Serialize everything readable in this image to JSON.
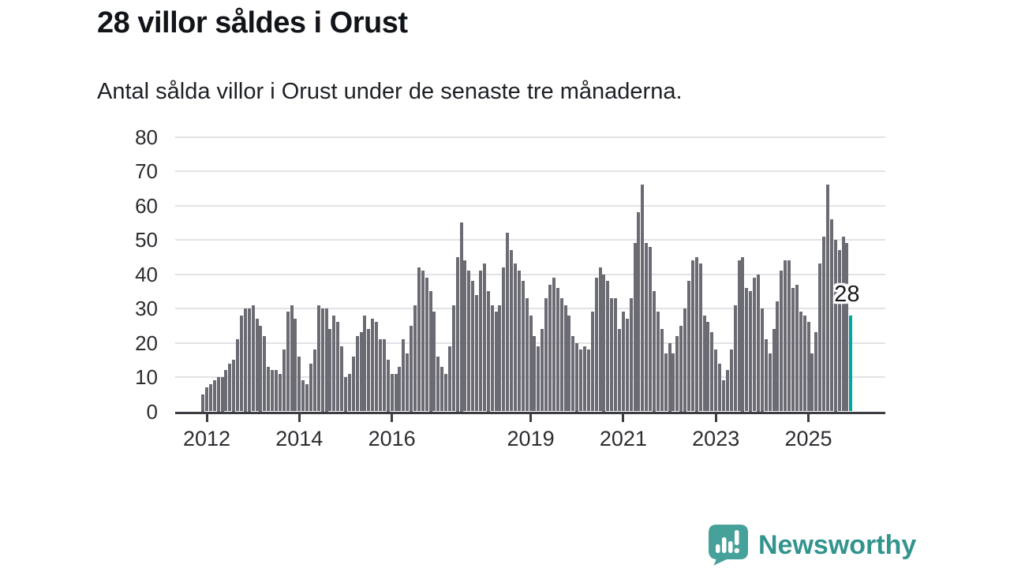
{
  "header": {
    "title": "28 villor såldes i Orust",
    "subtitle": "Antal sålda villor i Orust under de senaste tre månaderna."
  },
  "chart_data": {
    "type": "bar",
    "title": "28 villor såldes i Orust",
    "xlabel": "",
    "ylabel": "",
    "start_month": "2011-12",
    "frequency": "monthly",
    "values": [
      5,
      7,
      8,
      9,
      10,
      10,
      12,
      14,
      15,
      21,
      28,
      30,
      30,
      31,
      27,
      25,
      22,
      13,
      12,
      12,
      11,
      18,
      29,
      31,
      27,
      16,
      9,
      8,
      14,
      18,
      31,
      30,
      30,
      24,
      28,
      26,
      19,
      10,
      11,
      16,
      22,
      23,
      28,
      24,
      27,
      26,
      21,
      21,
      15,
      11,
      11,
      13,
      21,
      17,
      25,
      31,
      42,
      41,
      39,
      35,
      29,
      16,
      13,
      11,
      19,
      31,
      45,
      55,
      44,
      41,
      38,
      34,
      41,
      43,
      35,
      31,
      29,
      31,
      42,
      52,
      47,
      43,
      41,
      38,
      33,
      28,
      22,
      19,
      24,
      33,
      37,
      39,
      36,
      33,
      31,
      28,
      22,
      20,
      18,
      19,
      18,
      29,
      39,
      42,
      40,
      38,
      33,
      33,
      24,
      29,
      27,
      33,
      49,
      58,
      66,
      49,
      48,
      35,
      29,
      24,
      17,
      20,
      17,
      22,
      25,
      30,
      38,
      44,
      45,
      43,
      28,
      26,
      23,
      18,
      14,
      9,
      12,
      18,
      31,
      44,
      45,
      36,
      35,
      39,
      40,
      30,
      21,
      17,
      24,
      32,
      41,
      44,
      44,
      36,
      37,
      29,
      28,
      26,
      17,
      23,
      43,
      51,
      66,
      56,
      50,
      47,
      51,
      49,
      28
    ],
    "highlight_last": true,
    "highlight_value": 28,
    "highlight_label": "28",
    "yticks": [
      0,
      10,
      20,
      30,
      40,
      50,
      60,
      70,
      80
    ],
    "ylim": [
      0,
      80
    ],
    "xticks": [
      {
        "label": "2012",
        "index": 1
      },
      {
        "label": "2014",
        "index": 25
      },
      {
        "label": "2016",
        "index": 49
      },
      {
        "label": "2019",
        "index": 85
      },
      {
        "label": "2021",
        "index": 109
      },
      {
        "label": "2023",
        "index": 133
      },
      {
        "label": "2025",
        "index": 157
      }
    ],
    "grid": true,
    "legend": "none",
    "colors": {
      "bar": "#6b6b73",
      "highlight": "#00a5a0",
      "gridline": "#e3e3e7",
      "axis": "#3c3c43"
    }
  },
  "footer": {
    "brand": "Newsworthy",
    "brand_color": "#33948e",
    "icon_color": "#47a19b"
  }
}
